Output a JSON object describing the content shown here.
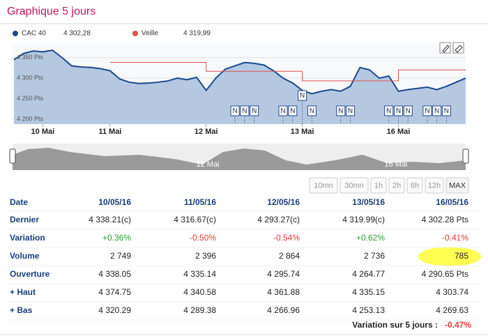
{
  "header": {
    "title": "Graphique 5 jours"
  },
  "chart_data": {
    "type": "line",
    "categories": [
      null,
      null,
      null,
      "10 Mai",
      null,
      null,
      null,
      null,
      null,
      null,
      "11 Mai",
      null,
      null,
      null,
      null,
      null,
      null,
      null,
      null,
      null,
      "12 Mai",
      null,
      null,
      null,
      null,
      null,
      null,
      null,
      null,
      null,
      "13 Mai",
      null,
      null,
      null,
      null,
      null,
      null,
      null,
      null,
      null,
      "16 Mai",
      null,
      null,
      null,
      null,
      null,
      null,
      null
    ],
    "series": [
      {
        "name": "CAC 40",
        "color": "#1a4a8c",
        "fill": "#b5c8e2",
        "values": [
          4345,
          4360,
          4366,
          4364,
          4368,
          4350,
          4330,
          4327,
          4326,
          4323,
          4318,
          4298,
          4290,
          4287,
          4288,
          4290,
          4293,
          4300,
          4296,
          4302,
          4270,
          4300,
          4322,
          4330,
          4338,
          4336,
          4332,
          4318,
          4300,
          4288,
          4270,
          4262,
          4268,
          4272,
          4268,
          4280,
          4326,
          4320,
          4300,
          4305,
          4268,
          4272,
          4275,
          4278,
          4272,
          4280,
          4290,
          4300
        ]
      },
      {
        "name": "Veille",
        "color": "#d9534f",
        "values": [
          null,
          null,
          null,
          null,
          null,
          null,
          null,
          null,
          null,
          null,
          4338.21,
          4338.21,
          4338.21,
          4338.21,
          4338.21,
          4338.21,
          4338.21,
          4338.21,
          4338.21,
          4338.21,
          4316.67,
          4316.67,
          4316.67,
          4316.67,
          4316.67,
          4316.67,
          4316.67,
          4316.67,
          4316.67,
          4316.67,
          4293.27,
          4293.27,
          4293.27,
          4293.27,
          4293.27,
          4293.27,
          4293.27,
          4293.27,
          4293.27,
          4293.27,
          4319.99,
          4319.99,
          4319.99,
          4319.99,
          4319.99,
          4319.99,
          4319.99,
          4319.99
        ]
      }
    ],
    "legend_values": [
      "4 302,28",
      "4 319,99"
    ],
    "ylim": [
      4188,
      4385
    ],
    "yticks": [
      {
        "value": 4200,
        "label": "4 200 Pts"
      },
      {
        "value": 4250,
        "label": "4 250 Pts"
      },
      {
        "value": 4300,
        "label": "4 300 Pts"
      },
      {
        "value": 4350,
        "label": "4 350 Pts"
      }
    ],
    "grid": true,
    "news_marker": "N",
    "news_at": [
      23,
      24,
      25,
      28,
      29,
      30,
      31,
      34,
      35,
      39,
      40,
      41,
      43,
      44,
      45
    ]
  },
  "navigator": {
    "labels": [
      "12 Mai",
      "16 Mai"
    ]
  },
  "buttons": [
    "10mn",
    "30mn",
    "1h",
    "2h",
    "6h",
    "12h",
    "MAX"
  ],
  "table": {
    "header": [
      "Date",
      "10/05/16",
      "11/05/16",
      "12/05/16",
      "13/05/16",
      "16/05/16"
    ],
    "rows": [
      [
        "Dernier",
        "4 338.21(c)",
        "4 316.67(c)",
        "4 293.27(c)",
        "4 319.99(c)",
        "4 302.28 Pts"
      ],
      [
        "Variation",
        "+0.36%",
        "-0.50%",
        "-0.54%",
        "+0.62%",
        "-0.41%"
      ],
      [
        "Volume",
        "2 749",
        "2 396",
        "2 864",
        "2 736",
        "785"
      ],
      [
        "Ouverture",
        "4 338.05",
        "4 335.14",
        "4 295.74",
        "4 264.77",
        "4 290.65 Pts"
      ],
      [
        "+ Haut",
        "4 374.75",
        "4 340.58",
        "4 361.88",
        "4 335.15",
        "4 303.74"
      ],
      [
        "+ Bas",
        "4 320.29",
        "4 289.38",
        "4 266.96",
        "4 253.13",
        "4 269.63"
      ]
    ]
  },
  "footer": {
    "label": "Variation sur 5 jours :",
    "value": "-0.47%"
  }
}
